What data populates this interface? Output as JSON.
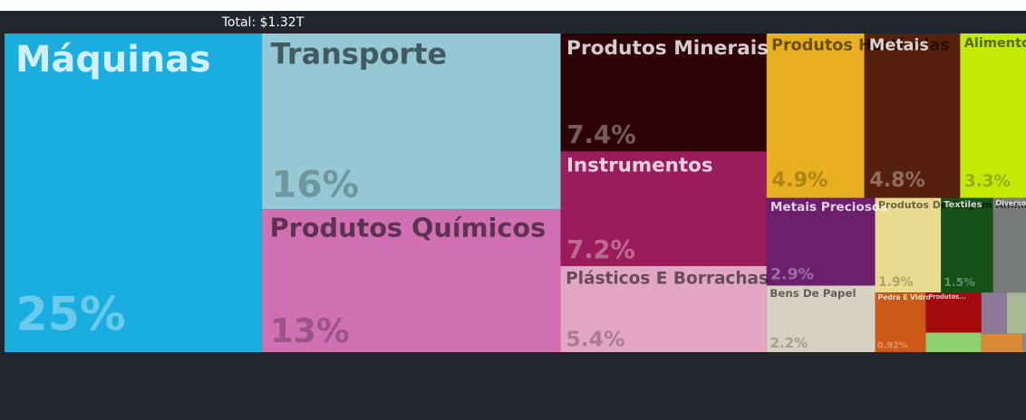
{
  "chart_data": {
    "type": "treemap",
    "title": "Total: $1.32T",
    "categories": [
      "Máquinas",
      "Transporte",
      "Produtos Químicos",
      "Produtos Minerais",
      "Instrumentos",
      "Plásticos E Borrachas",
      "Produtos Hortícolas",
      "Metais",
      "Alimentos",
      "Metais Preciosos",
      "Bens De Papel",
      "Produtos De Origem Animal",
      "Textiles",
      "Diversos",
      "Pedra E Vidro",
      "Produtos...",
      null,
      null,
      null,
      null,
      null
    ],
    "values": [
      25,
      16,
      13,
      7.4,
      7.2,
      5.4,
      4.9,
      4.8,
      3.3,
      2.9,
      2.2,
      1.9,
      1.5,
      0.95,
      0.92,
      0.68,
      0.33,
      0.32,
      0.24,
      0.23,
      0.02
    ],
    "value_labels": [
      "25%",
      "16%",
      "13%",
      "7.4%",
      "7.2%",
      "5.4%",
      "4.9%",
      "4.8%",
      "3.3%",
      "2.9%",
      "2.2%",
      "1.9%",
      "1.5%",
      null,
      "0.92%",
      null,
      null,
      null,
      null,
      null,
      null
    ],
    "colors": [
      "#1aaee0",
      "#93c8d4",
      "#d070b3",
      "#2d0306",
      "#9a1c5a",
      "#e2a6c3",
      "#e8b020",
      "#56200d",
      "#c3e906",
      "#6b1f6d",
      "#d9d0c4",
      "#eada8f",
      "#17511a",
      "#777b7c",
      "#cc5a16",
      "#a50a0f",
      "#8ed16e",
      "#8f799a",
      "#a6b894",
      "#d98a36",
      "#8a8a8a"
    ]
  }
}
